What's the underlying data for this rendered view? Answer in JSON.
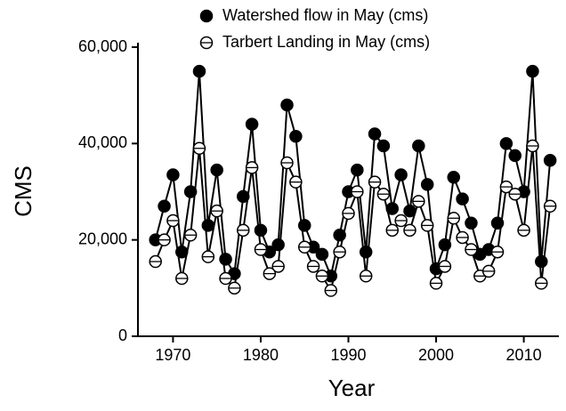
{
  "chart_data": {
    "type": "line",
    "x_label": "Year",
    "y_label": "CMS",
    "x": [
      1968,
      1969,
      1970,
      1971,
      1972,
      1973,
      1974,
      1975,
      1976,
      1977,
      1978,
      1979,
      1980,
      1981,
      1982,
      1983,
      1984,
      1985,
      1986,
      1987,
      1988,
      1989,
      1990,
      1991,
      1992,
      1993,
      1994,
      1995,
      1996,
      1997,
      1998,
      1999,
      2000,
      2001,
      2002,
      2003,
      2004,
      2005,
      2006,
      2007,
      2008,
      2009,
      2010,
      2011,
      2012,
      2013
    ],
    "series": [
      {
        "name": "Watershed flow in May (cms)",
        "color": "#000000",
        "fill": "#000000",
        "values": [
          20000,
          27000,
          33500,
          17500,
          30000,
          55000,
          23000,
          34500,
          16000,
          13000,
          29000,
          44000,
          22000,
          17500,
          19000,
          48000,
          41500,
          23000,
          18500,
          17000,
          12500,
          21000,
          30000,
          34500,
          17500,
          42000,
          39500,
          26500,
          33500,
          26000,
          39500,
          31500,
          14000,
          19000,
          33000,
          28500,
          23500,
          17000,
          18000,
          23500,
          40000,
          37500,
          30000,
          55000,
          15500,
          36500
        ]
      },
      {
        "name": "Tarbert Landing in May (cms)",
        "color": "#000000",
        "fill": "#ffffff",
        "values": [
          15500,
          20000,
          24000,
          12000,
          21000,
          39000,
          16500,
          26000,
          12000,
          10000,
          22000,
          35000,
          18000,
          13000,
          14500,
          36000,
          32000,
          18500,
          14500,
          12500,
          9500,
          17500,
          25500,
          30000,
          12500,
          32000,
          29500,
          22000,
          24000,
          22000,
          28000,
          23000,
          11000,
          14500,
          24500,
          20500,
          18000,
          12500,
          13500,
          17500,
          31000,
          29500,
          22000,
          39500,
          11000,
          27000
        ]
      }
    ],
    "xlim": [
      1966,
      2014
    ],
    "xticks": [
      1970,
      1980,
      1990,
      2000,
      2010
    ],
    "ylim": [
      0,
      60000
    ],
    "yticks": [
      0,
      {
        "value": 20000,
        "label": "20,000"
      },
      {
        "value": 40000,
        "label": "40,000"
      },
      {
        "value": 60000,
        "label": "60,000"
      }
    ]
  }
}
